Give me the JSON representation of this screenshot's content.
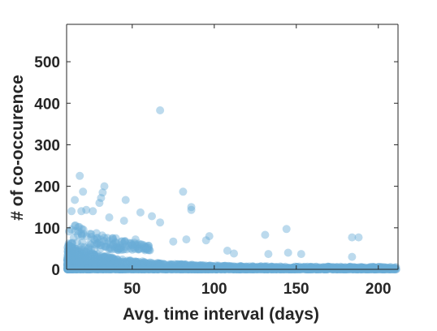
{
  "chart_data": {
    "type": "scatter",
    "xlabel": "Avg. time interval (days)",
    "ylabel": "# of co-occurence",
    "xlim": [
      10,
      212
    ],
    "ylim": [
      0,
      590
    ],
    "xticks": [
      50,
      100,
      150,
      200
    ],
    "yticks": [
      0,
      100,
      200,
      300,
      400,
      500
    ],
    "grid": false,
    "point_color": "#6aaed6",
    "point_opacity": 0.45,
    "notable_points": [
      {
        "x": 67,
        "y": 383
      },
      {
        "x": 18,
        "y": 225
      },
      {
        "x": 33,
        "y": 200
      },
      {
        "x": 20,
        "y": 187
      },
      {
        "x": 32,
        "y": 185
      },
      {
        "x": 81,
        "y": 187
      },
      {
        "x": 31,
        "y": 172
      },
      {
        "x": 46,
        "y": 167
      },
      {
        "x": 15,
        "y": 167
      },
      {
        "x": 30,
        "y": 160
      },
      {
        "x": 86,
        "y": 150
      },
      {
        "x": 86,
        "y": 143
      },
      {
        "x": 22,
        "y": 143
      },
      {
        "x": 19,
        "y": 140
      },
      {
        "x": 13,
        "y": 140
      },
      {
        "x": 26,
        "y": 140
      },
      {
        "x": 55,
        "y": 137
      },
      {
        "x": 62,
        "y": 128
      },
      {
        "x": 36,
        "y": 125
      },
      {
        "x": 67,
        "y": 113
      },
      {
        "x": 45,
        "y": 117
      },
      {
        "x": 144,
        "y": 97
      },
      {
        "x": 131,
        "y": 83
      },
      {
        "x": 97,
        "y": 80
      },
      {
        "x": 184,
        "y": 77
      },
      {
        "x": 188,
        "y": 77
      },
      {
        "x": 83,
        "y": 72
      },
      {
        "x": 95,
        "y": 70
      },
      {
        "x": 75,
        "y": 67
      },
      {
        "x": 40,
        "y": 75
      },
      {
        "x": 52,
        "y": 72
      },
      {
        "x": 145,
        "y": 40
      },
      {
        "x": 153,
        "y": 37
      },
      {
        "x": 133,
        "y": 37
      },
      {
        "x": 184,
        "y": 30
      },
      {
        "x": 108,
        "y": 45
      },
      {
        "x": 112,
        "y": 38
      }
    ]
  }
}
